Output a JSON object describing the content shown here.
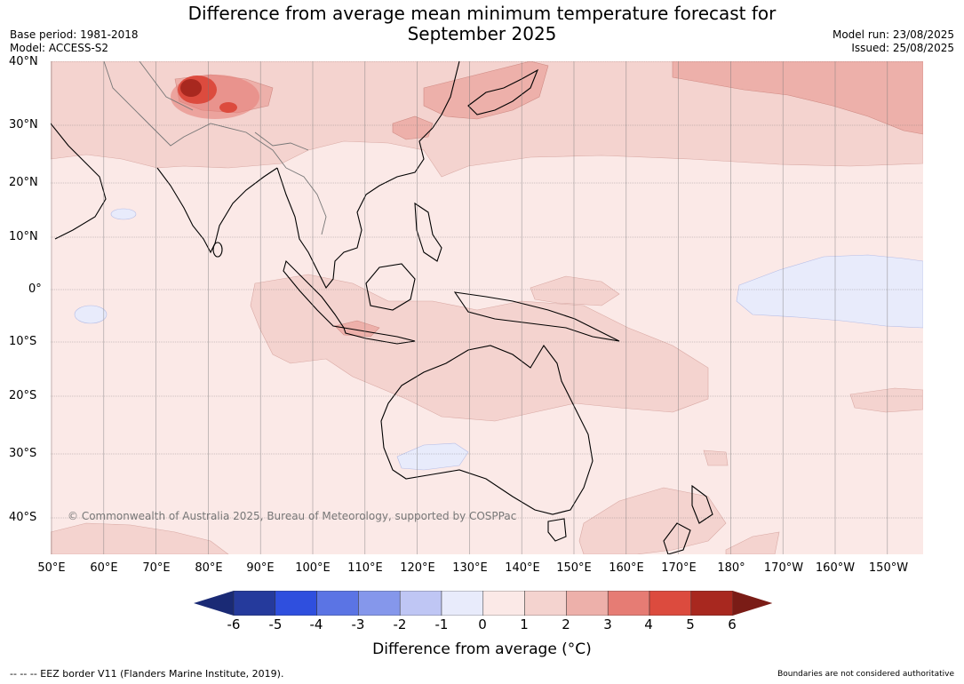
{
  "header": {
    "title_line1": "Difference from average mean minimum temperature forecast for",
    "title_line2": "September 2025",
    "base_period": "Base period: 1981-2018",
    "model": "Model: ACCESS-S2",
    "model_run": "Model run: 23/08/2025",
    "issued": "Issued: 25/08/2025"
  },
  "map": {
    "lat_labels": [
      "40°N",
      "30°N",
      "20°N",
      "10°N",
      "0°",
      "10°S",
      "20°S",
      "30°S",
      "40°S"
    ],
    "lon_labels": [
      "50°E",
      "60°E",
      "70°E",
      "80°E",
      "90°E",
      "100°E",
      "110°E",
      "120°E",
      "130°E",
      "140°E",
      "150°E",
      "160°E",
      "170°E",
      "180°",
      "170°W",
      "160°W",
      "150°W"
    ],
    "copyright": "© Commonwealth of Australia 2025, Bureau of Meteorology, supported by COSPPac",
    "background_color": "#fbe9e7"
  },
  "colorbar": {
    "ticks": [
      "-6",
      "-5",
      "-4",
      "-3",
      "-2",
      "-1",
      "0",
      "1",
      "2",
      "3",
      "4",
      "5",
      "6"
    ],
    "colors": [
      "#253a9c",
      "#2f4fde",
      "#5b74e4",
      "#8597eb",
      "#bfc6f4",
      "#e8ebfb",
      "#fbe9e7",
      "#f4d3cf",
      "#edb0aa",
      "#e67c74",
      "#dc4b3e",
      "#a8281f"
    ],
    "under_color": "#1a2a75",
    "over_color": "#7a1c16",
    "label": "Difference from average (°C)"
  },
  "footer": {
    "eez_note": "--  --  -- EEZ border V11 (Flanders Marine Institute, 2019).",
    "disclaimer": "Boundaries are not considered authoritative"
  }
}
